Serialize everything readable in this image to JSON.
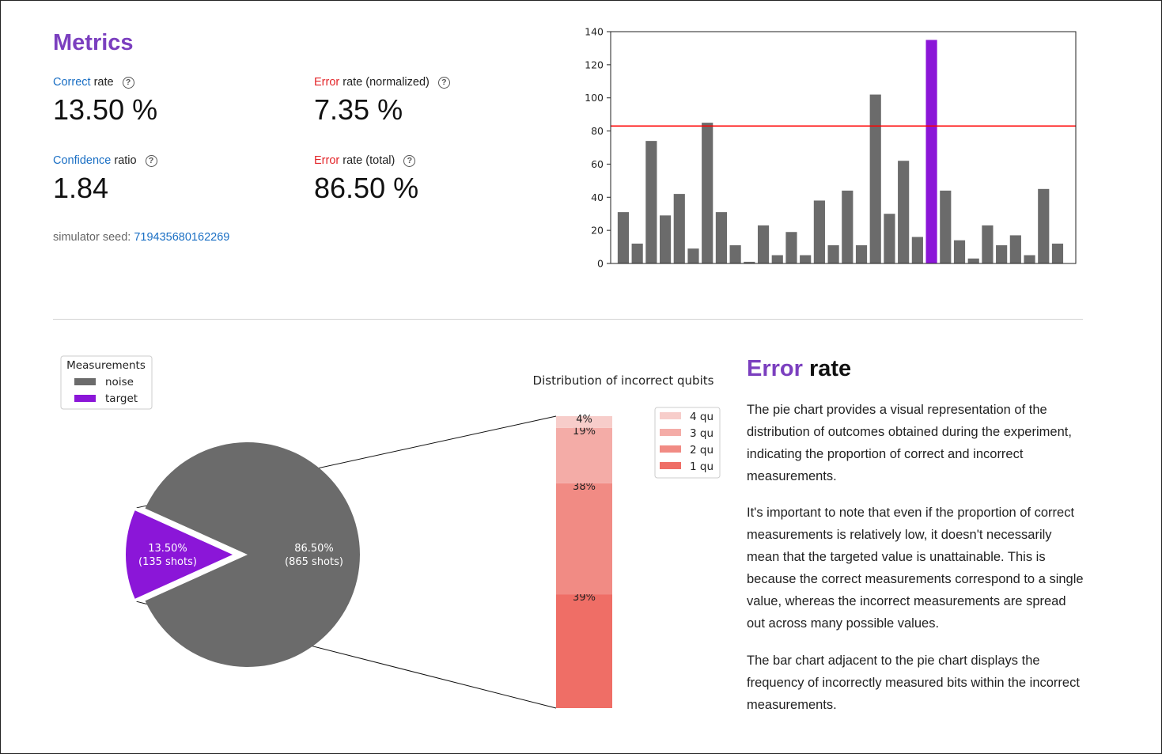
{
  "metrics": {
    "title": "Metrics",
    "correct_rate": {
      "accent": "Correct",
      "rest": "rate",
      "value": "13.50 %"
    },
    "error_rate_normalized": {
      "accent": "Error",
      "rest": "rate (normalized)",
      "value": "7.35 %"
    },
    "confidence_ratio": {
      "accent": "Confidence",
      "rest": "ratio",
      "value": "1.84"
    },
    "error_rate_total": {
      "accent": "Error",
      "rest": "rate (total)",
      "value": "86.50 %"
    },
    "help_icon": "question-circle-icon",
    "seed_label": "simulator seed:",
    "seed_value": "719435680162269"
  },
  "colors": {
    "accent": "#7b3fbf",
    "link": "#1a6fc4",
    "error": "#e3262a",
    "bar": "#6b6b6b",
    "target": "#8b16d8",
    "threshold": "#ff0000"
  },
  "chart_data": [
    {
      "type": "bar",
      "title": "",
      "ylim": [
        0,
        140
      ],
      "yticks": [
        0,
        20,
        40,
        60,
        80,
        100,
        120,
        140
      ],
      "values": [
        31,
        12,
        74,
        29,
        42,
        9,
        85,
        31,
        11,
        1,
        23,
        5,
        19,
        5,
        38,
        11,
        44,
        11,
        102,
        30,
        62,
        16,
        135,
        44,
        14,
        3,
        23,
        11,
        17,
        5,
        45,
        12
      ],
      "highlight_index": 22,
      "threshold": 83,
      "colors": {
        "bar": "#6b6b6b",
        "highlight": "#8b16d8",
        "threshold": "#ff0000"
      }
    },
    {
      "type": "pie",
      "legend": {
        "title": "Measurements",
        "entries": [
          {
            "label": "noise",
            "color": "#6b6b6b"
          },
          {
            "label": "target",
            "color": "#8b16d8"
          }
        ]
      },
      "slices": [
        {
          "name": "noise",
          "value": 86.5,
          "label": "86.50%",
          "sublabel": "(865 shots)",
          "color": "#6b6b6b"
        },
        {
          "name": "target",
          "value": 13.5,
          "label": "13.50%",
          "sublabel": "(135 shots)",
          "color": "#8b16d8",
          "exploded": true
        }
      ]
    },
    {
      "type": "bar",
      "title": "Distribution of incorrect qubits",
      "stacked": true,
      "segments": [
        {
          "name": "1 qu",
          "value": 39,
          "label": "39%",
          "color": "#ef6e66"
        },
        {
          "name": "2 qu",
          "value": 38,
          "label": "38%",
          "color": "#f18b84"
        },
        {
          "name": "3 qu",
          "value": 19,
          "label": "19%",
          "color": "#f4aca7"
        },
        {
          "name": "4 qu",
          "value": 4,
          "label": "4%",
          "color": "#f7cdca"
        }
      ],
      "legend_order": [
        "4 qu",
        "3 qu",
        "2 qu",
        "1 qu"
      ]
    }
  ],
  "error_section": {
    "title_accent": "Error",
    "title_rest": "rate",
    "paragraphs": [
      "The pie chart provides a visual representation of the distribution of outcomes obtained during the experiment, indicating the proportion of correct and incorrect measurements.",
      "It's important to note that even if the proportion of correct measurements is relatively low, it doesn't necessarily mean that the targeted value is unattainable. This is because the correct measurements correspond to a single value, whereas the incorrect measurements are spread out across many possible values.",
      "The bar chart adjacent to the pie chart displays the frequency of incorrectly measured bits within the incorrect measurements."
    ]
  }
}
